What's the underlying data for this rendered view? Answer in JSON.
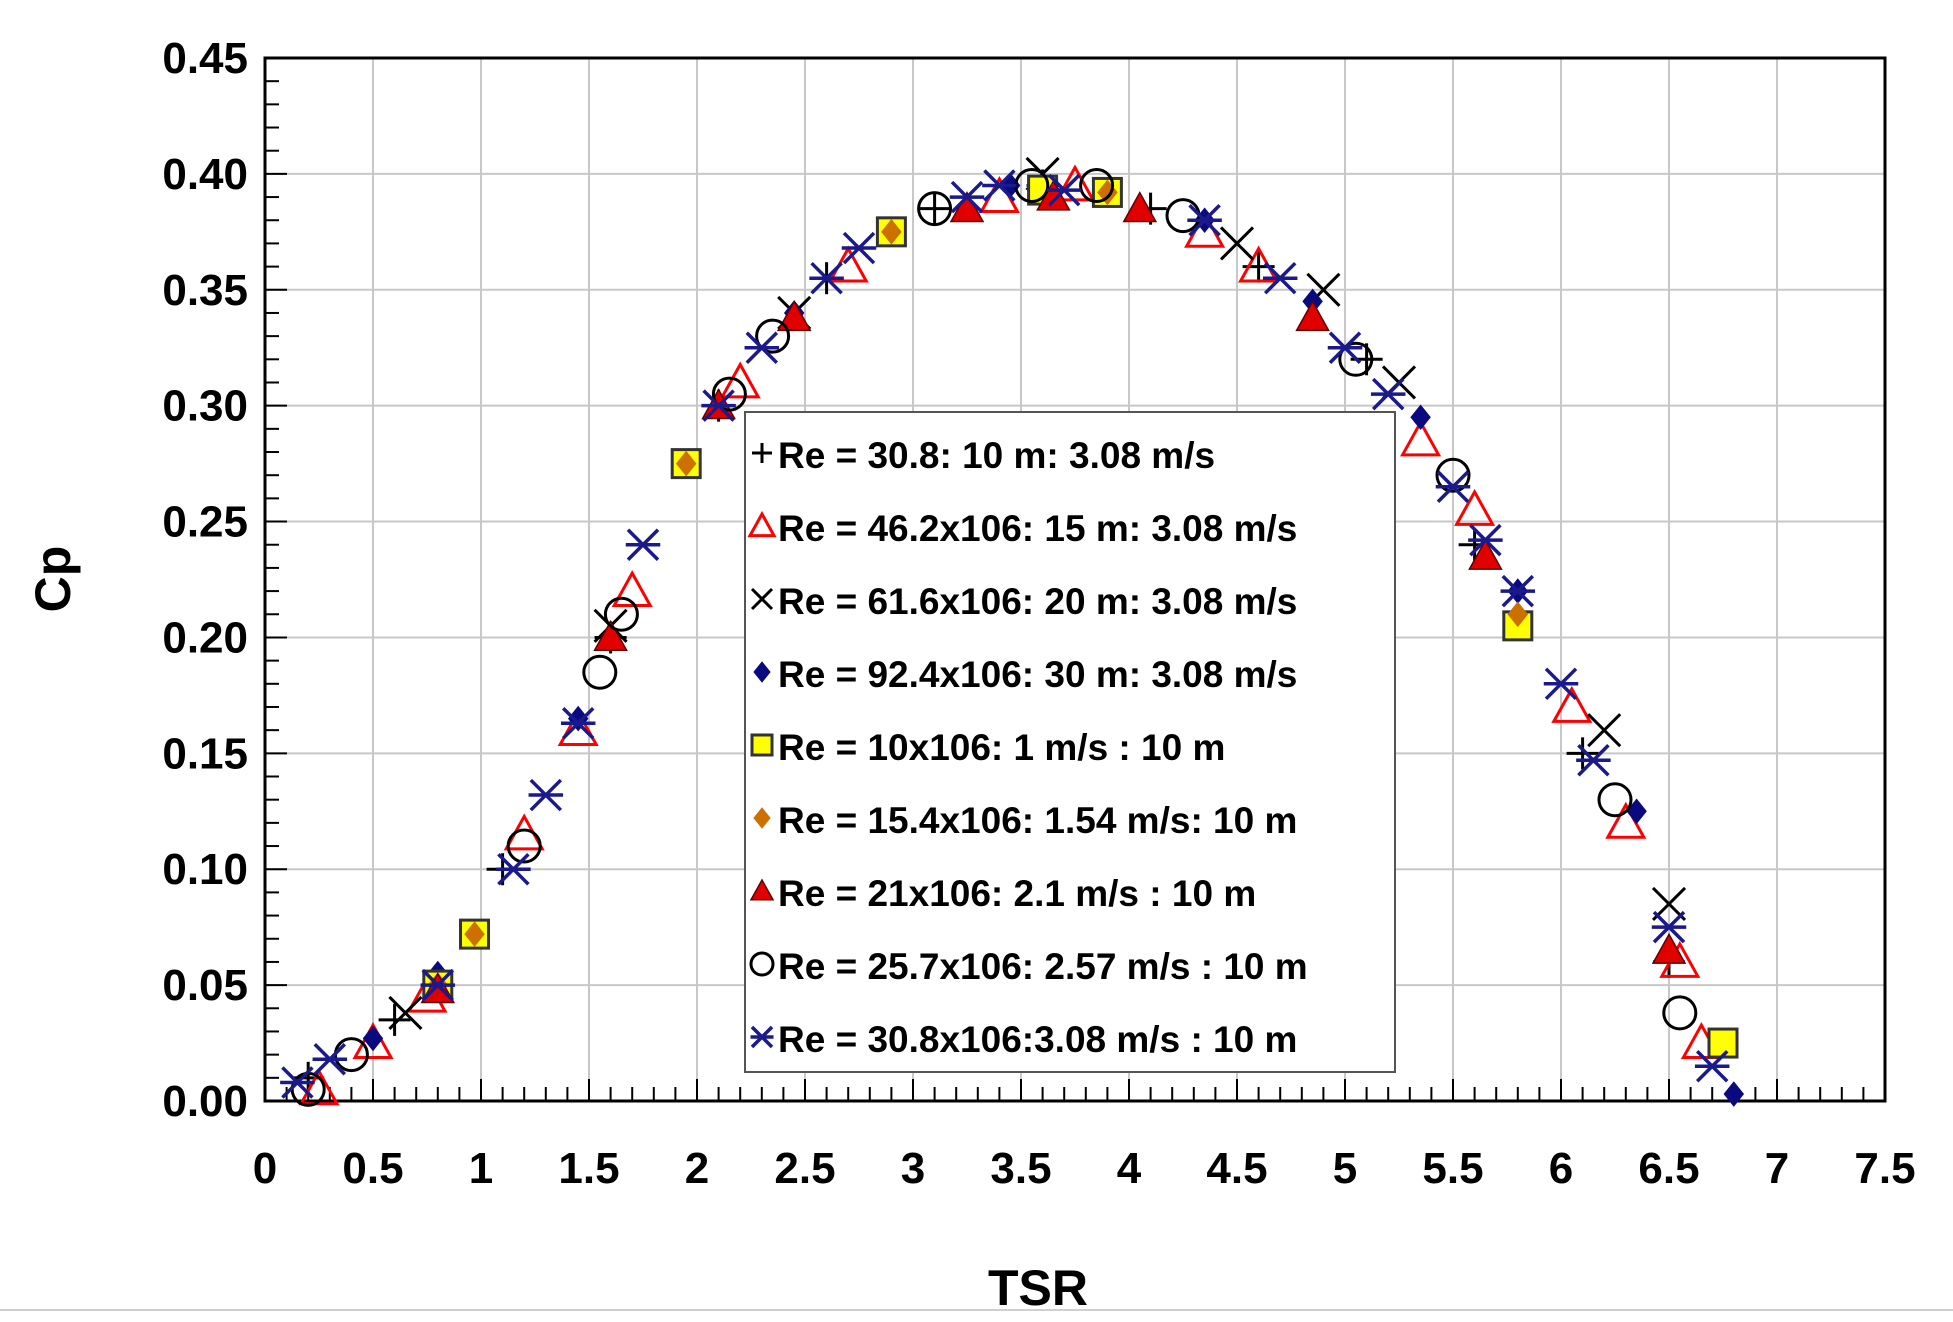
{
  "chart_data": {
    "type": "scatter",
    "title": "",
    "xlabel": "TSR",
    "ylabel": "Cp",
    "xlim": [
      0,
      7.5
    ],
    "ylim": [
      0,
      0.45
    ],
    "grid": true,
    "legend_position": "center",
    "x_ticks": [
      0,
      0.5,
      1,
      1.5,
      2,
      2.5,
      3,
      3.5,
      4,
      4.5,
      5,
      5.5,
      6,
      6.5,
      7,
      7.5
    ],
    "x_tick_labels": [
      "0",
      "0.5",
      "1",
      "1.5",
      "2",
      "2.5",
      "3",
      "3.5",
      "4",
      "4.5",
      "5",
      "5.5",
      "6",
      "6.5",
      "7",
      "7.5"
    ],
    "y_ticks": [
      0,
      0.05,
      0.1,
      0.15,
      0.2,
      0.25,
      0.3,
      0.35,
      0.4,
      0.45
    ],
    "y_tick_labels": [
      "0.00",
      "0.05",
      "0.10",
      "0.15",
      "0.20",
      "0.25",
      "0.30",
      "0.35",
      "0.40",
      "0.45"
    ],
    "series": [
      {
        "name": "Re = 30.8: 10 m: 3.08 m/s",
        "marker": "plus",
        "color": "#000000",
        "points": [
          [
            0.2,
            0.01
          ],
          [
            0.6,
            0.035
          ],
          [
            1.1,
            0.1
          ],
          [
            1.6,
            0.2
          ],
          [
            2.1,
            0.3
          ],
          [
            2.6,
            0.355
          ],
          [
            3.1,
            0.385
          ],
          [
            3.6,
            0.395
          ],
          [
            4.1,
            0.385
          ],
          [
            4.6,
            0.36
          ],
          [
            5.1,
            0.32
          ],
          [
            5.6,
            0.24
          ],
          [
            6.1,
            0.15
          ],
          [
            6.5,
            0.06
          ]
        ]
      },
      {
        "name": "Re = 46.2x106: 15 m: 3.08 m/s",
        "marker": "triangle-open",
        "color": "#ff0000",
        "points": [
          [
            0.25,
            0.005
          ],
          [
            0.5,
            0.025
          ],
          [
            0.75,
            0.045
          ],
          [
            1.2,
            0.115
          ],
          [
            1.45,
            0.16
          ],
          [
            1.7,
            0.22
          ],
          [
            2.2,
            0.31
          ],
          [
            2.7,
            0.36
          ],
          [
            3.4,
            0.39
          ],
          [
            3.75,
            0.395
          ],
          [
            4.35,
            0.375
          ],
          [
            4.6,
            0.36
          ],
          [
            5.35,
            0.285
          ],
          [
            5.6,
            0.255
          ],
          [
            6.05,
            0.17
          ],
          [
            6.3,
            0.12
          ],
          [
            6.55,
            0.06
          ],
          [
            6.65,
            0.025
          ]
        ]
      },
      {
        "name": "Re = 61.6x106: 20 m: 3.08 m/s",
        "marker": "x",
        "color": "#000000",
        "points": [
          [
            0.65,
            0.038
          ],
          [
            1.6,
            0.205
          ],
          [
            2.45,
            0.34
          ],
          [
            3.6,
            0.4
          ],
          [
            4.5,
            0.37
          ],
          [
            4.9,
            0.35
          ],
          [
            5.25,
            0.31
          ],
          [
            6.2,
            0.16
          ],
          [
            6.5,
            0.085
          ]
        ]
      },
      {
        "name": "Re = 92.4x106: 30 m: 3.08 m/s",
        "marker": "diamond-filled",
        "color": "#0a0a80",
        "points": [
          [
            0.5,
            0.027
          ],
          [
            0.8,
            0.055
          ],
          [
            1.45,
            0.165
          ],
          [
            2.1,
            0.3
          ],
          [
            2.45,
            0.34
          ],
          [
            3.45,
            0.395
          ],
          [
            4.35,
            0.38
          ],
          [
            4.85,
            0.345
          ],
          [
            5.35,
            0.295
          ],
          [
            5.8,
            0.22
          ],
          [
            6.35,
            0.125
          ],
          [
            6.8,
            0.003
          ]
        ]
      },
      {
        "name": "Re = 10x106: 1 m/s : 10 m",
        "marker": "square-filled",
        "color": "#ffff00",
        "points": [
          [
            0.8,
            0.05
          ],
          [
            0.97,
            0.072
          ],
          [
            1.95,
            0.275
          ],
          [
            2.9,
            0.375
          ],
          [
            3.6,
            0.393
          ],
          [
            3.9,
            0.392
          ],
          [
            5.8,
            0.205
          ],
          [
            6.75,
            0.025
          ]
        ]
      },
      {
        "name": "Re = 15.4x106: 1.54 m/s: 10 m",
        "marker": "diamond-filled",
        "color": "#cc7000",
        "points": [
          [
            0.8,
            0.05
          ],
          [
            0.97,
            0.072
          ],
          [
            1.95,
            0.275
          ],
          [
            2.9,
            0.375
          ],
          [
            3.9,
            0.392
          ],
          [
            5.8,
            0.21
          ]
        ]
      },
      {
        "name": "Re = 21x106: 2.1 m/s : 10 m",
        "marker": "triangle-filled",
        "color": "#e00000",
        "points": [
          [
            0.8,
            0.048
          ],
          [
            1.6,
            0.2
          ],
          [
            2.1,
            0.3
          ],
          [
            2.45,
            0.338
          ],
          [
            3.25,
            0.385
          ],
          [
            3.65,
            0.39
          ],
          [
            4.05,
            0.385
          ],
          [
            4.85,
            0.338
          ],
          [
            5.65,
            0.235
          ],
          [
            6.5,
            0.065
          ]
        ]
      },
      {
        "name": "Re = 25.7x106: 2.57 m/s : 10 m",
        "marker": "circle-open",
        "color": "#000000",
        "points": [
          [
            0.2,
            0.005
          ],
          [
            0.4,
            0.02
          ],
          [
            1.2,
            0.11
          ],
          [
            1.55,
            0.185
          ],
          [
            1.65,
            0.21
          ],
          [
            2.15,
            0.305
          ],
          [
            2.35,
            0.33
          ],
          [
            3.1,
            0.385
          ],
          [
            3.55,
            0.395
          ],
          [
            3.85,
            0.395
          ],
          [
            4.25,
            0.382
          ],
          [
            5.05,
            0.32
          ],
          [
            5.5,
            0.27
          ],
          [
            6.25,
            0.13
          ],
          [
            6.55,
            0.038
          ]
        ]
      },
      {
        "name": "Re = 30.8x106:3.08 m/s : 10 m",
        "marker": "asterisk",
        "color": "#1a1a8c",
        "points": [
          [
            0.15,
            0.008
          ],
          [
            0.3,
            0.018
          ],
          [
            0.8,
            0.05
          ],
          [
            1.15,
            0.1
          ],
          [
            1.3,
            0.132
          ],
          [
            1.45,
            0.163
          ],
          [
            1.75,
            0.24
          ],
          [
            2.1,
            0.3
          ],
          [
            2.3,
            0.325
          ],
          [
            2.6,
            0.355
          ],
          [
            2.75,
            0.368
          ],
          [
            3.25,
            0.39
          ],
          [
            3.4,
            0.395
          ],
          [
            3.7,
            0.393
          ],
          [
            4.35,
            0.38
          ],
          [
            4.7,
            0.355
          ],
          [
            5.0,
            0.325
          ],
          [
            5.2,
            0.305
          ],
          [
            5.5,
            0.265
          ],
          [
            5.65,
            0.242
          ],
          [
            5.8,
            0.22
          ],
          [
            6.0,
            0.18
          ],
          [
            6.15,
            0.147
          ],
          [
            6.5,
            0.075
          ],
          [
            6.7,
            0.015
          ]
        ]
      }
    ]
  }
}
